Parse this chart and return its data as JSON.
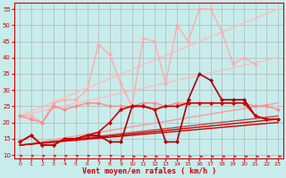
{
  "bg_color": "#c8ecec",
  "xlabel": "Vent moyen/en rafales ( km/h )",
  "xlabel_color": "#cc0000",
  "tick_color": "#cc0000",
  "xlim": [
    -0.5,
    23.5
  ],
  "ylim": [
    9,
    57
  ],
  "yticks": [
    10,
    15,
    20,
    25,
    30,
    35,
    40,
    45,
    50,
    55
  ],
  "xticks": [
    0,
    1,
    2,
    3,
    4,
    5,
    6,
    7,
    8,
    9,
    10,
    11,
    12,
    13,
    14,
    15,
    16,
    17,
    18,
    19,
    20,
    21,
    22,
    23
  ],
  "x": [
    0,
    1,
    2,
    3,
    4,
    5,
    6,
    7,
    8,
    9,
    10,
    11,
    12,
    13,
    14,
    15,
    16,
    17,
    18,
    19,
    20,
    21,
    22,
    23
  ],
  "line_straight1": {
    "x0": 0,
    "y0": 22,
    "x1": 23,
    "y1": 55,
    "color": "#ffbbbb",
    "lw": 1.0
  },
  "line_straight2": {
    "x0": 0,
    "y0": 22,
    "x1": 23,
    "y1": 40,
    "color": "#ffbbbb",
    "lw": 1.0
  },
  "line_straight3": {
    "x0": 0,
    "y0": 13,
    "x1": 23,
    "y1": 26,
    "color": "#ff9999",
    "lw": 1.0
  },
  "line_straight4": {
    "x0": 0,
    "y0": 13,
    "x1": 23,
    "y1": 22,
    "color": "#cc4444",
    "lw": 1.0
  },
  "line_straight5": {
    "x0": 0,
    "y0": 13,
    "x1": 23,
    "y1": 21,
    "color": "#cc0000",
    "lw": 1.0
  },
  "line_straight6": {
    "x0": 0,
    "y0": 13,
    "x1": 23,
    "y1": 20,
    "color": "#cc0000",
    "lw": 1.0
  },
  "zigzag_light": {
    "x": [
      0,
      1,
      2,
      3,
      4,
      5,
      6,
      7,
      8,
      9,
      10,
      11,
      12,
      13,
      14,
      15,
      16,
      17,
      18,
      19,
      20,
      21
    ],
    "y": [
      22,
      22,
      20,
      26,
      27,
      27,
      30,
      44,
      41,
      32,
      25,
      46,
      45,
      32,
      50,
      45,
      55,
      55,
      48,
      38,
      40,
      38
    ],
    "color": "#ffaaaa",
    "lw": 1.0,
    "ms": 2.5
  },
  "zigzag_medium": {
    "x": [
      0,
      1,
      2,
      3,
      4,
      5,
      6,
      7,
      8,
      9,
      10,
      11,
      12,
      13,
      14,
      15,
      16,
      17,
      18,
      19,
      20,
      21,
      22,
      23
    ],
    "y": [
      22,
      21,
      20,
      25,
      24,
      25,
      26,
      26,
      25,
      25,
      25,
      26,
      26,
      25,
      26,
      26,
      26,
      26,
      26,
      26,
      26,
      25,
      25,
      24
    ],
    "color": "#ff8888",
    "lw": 1.0,
    "ms": 2.5
  },
  "zigzag_dark_volatile": {
    "x": [
      0,
      1,
      2,
      3,
      4,
      5,
      6,
      7,
      8,
      9,
      10,
      11,
      12,
      13,
      14,
      15,
      16,
      17,
      18,
      19,
      20,
      21,
      22,
      23
    ],
    "y": [
      14,
      16,
      13,
      13,
      15,
      15,
      16,
      16,
      14,
      14,
      25,
      25,
      24,
      14,
      14,
      27,
      35,
      33,
      27,
      27,
      27,
      22,
      21,
      21
    ],
    "color": "#aa0000",
    "lw": 1.2,
    "ms": 2.5
  },
  "zigzag_dark_smooth": {
    "x": [
      0,
      1,
      2,
      3,
      4,
      5,
      6,
      7,
      8,
      9,
      10,
      11,
      12,
      13,
      14,
      15,
      16,
      17,
      18,
      19,
      20,
      21,
      22,
      23
    ],
    "y": [
      14,
      16,
      13,
      13,
      15,
      15,
      16,
      17,
      20,
      24,
      25,
      25,
      24,
      25,
      25,
      26,
      26,
      26,
      26,
      26,
      26,
      22,
      21,
      21
    ],
    "color": "#cc0000",
    "lw": 1.2,
    "ms": 2.5
  },
  "arrows_color": "#cc0000"
}
